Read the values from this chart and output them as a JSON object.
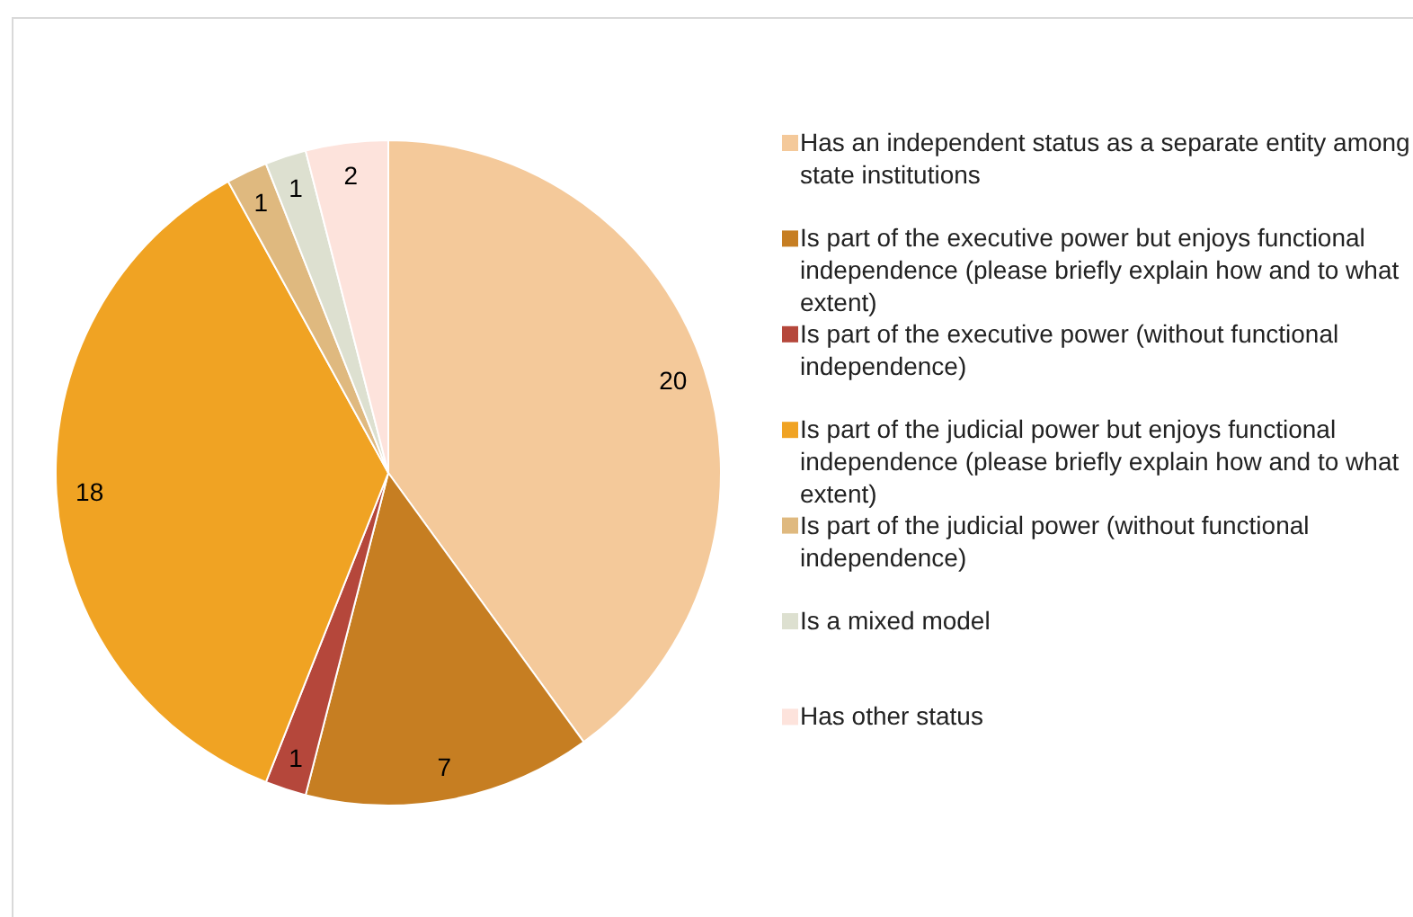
{
  "chart_data": {
    "type": "pie",
    "categories": [
      "Has an independent status as a separate entity among state institutions",
      "Is part of the executive power but enjoys functional independence (please briefly explain how and to what extent)",
      "Is part of the executive power (without functional independence)",
      "Is part of the judicial power but enjoys functional independence (please briefly explain how and to what extent)",
      "Is part of the judicial power (without functional independence)",
      "Is a mixed model",
      "Has other status"
    ],
    "values": [
      20,
      7,
      1,
      18,
      1,
      1,
      2
    ],
    "colors": [
      "#f4c99a",
      "#c67e22",
      "#b5473b",
      "#f0a323",
      "#dfb97f",
      "#dde0d0",
      "#fde3dc"
    ],
    "data_labels": true,
    "legend": "right"
  }
}
